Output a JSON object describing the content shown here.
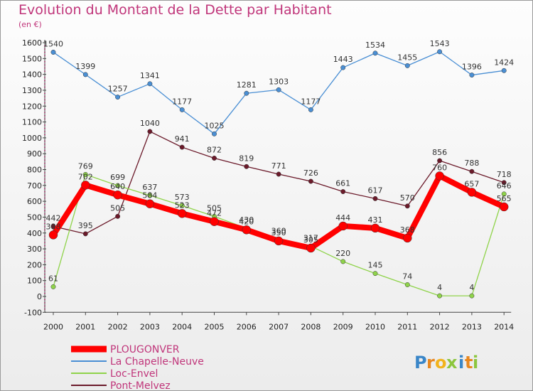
{
  "header": {
    "title": "Evolution du Montant de la Dette par Habitant",
    "unit": "(en €)"
  },
  "logo": {
    "letters": [
      "P",
      "r",
      "o",
      "x",
      "i",
      "t",
      "i"
    ],
    "colors": [
      "#3a86c8",
      "#e8871e",
      "#f2b31c",
      "#8cc63e",
      "#3a86c8",
      "#e8871e",
      "#8cc63e"
    ]
  },
  "chart_data": {
    "type": "line",
    "x": [
      "2000",
      "2001",
      "2002",
      "2003",
      "2004",
      "2005",
      "2006",
      "2007",
      "2008",
      "2009",
      "2010",
      "2011",
      "2012",
      "2013",
      "2014"
    ],
    "ylim": [
      -100,
      1600
    ],
    "yticks": [
      -100,
      0,
      100,
      200,
      300,
      400,
      500,
      600,
      700,
      800,
      900,
      1000,
      1100,
      1200,
      1300,
      1400,
      1500,
      1600
    ],
    "grid": false,
    "legend_position": "bottom-left",
    "series": [
      {
        "name": "La Chapelle-Neuve",
        "color": "#4a8fd4",
        "values": [
          1540,
          1399,
          1257,
          1341,
          1177,
          1025,
          1281,
          1303,
          1177,
          1443,
          1534,
          1455,
          1543,
          1396,
          1424
        ]
      },
      {
        "name": "Pont-Melvez",
        "color": "#6b1a2a",
        "values": [
          442,
          395,
          505,
          1040,
          941,
          872,
          819,
          771,
          726,
          661,
          617,
          570,
          856,
          788,
          718
        ]
      },
      {
        "name": "Loc-Envel",
        "color": "#8fd34a",
        "values": [
          61,
          769,
          699,
          637,
          573,
          505,
          430,
          360,
          317,
          220,
          145,
          74,
          4,
          4,
          646
        ]
      },
      {
        "name": "PLOUGONVER",
        "color": "#ff0000",
        "values": [
          388,
          702,
          640,
          584,
          523,
          472,
          420,
          350,
          305,
          444,
          431,
          368,
          760,
          657,
          565
        ]
      }
    ]
  }
}
